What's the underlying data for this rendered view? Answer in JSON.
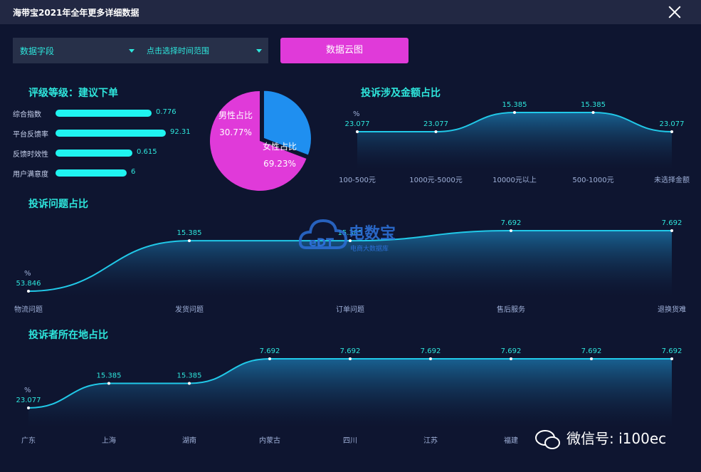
{
  "window": {
    "title": "海带宝2021年全年更多详细数据"
  },
  "toolbar": {
    "field_select": "数据字段",
    "time_select": "点击选择时间范围",
    "cloud_button": "数据云图"
  },
  "rating": {
    "title": "评级等级：建议下单",
    "items": [
      {
        "label": "综合指数",
        "value": "0.776",
        "fill": 0.54
      },
      {
        "label": "平台反馈率",
        "value": "92.31",
        "fill": 0.62
      },
      {
        "label": "反馈时效性",
        "value": "0.615",
        "fill": 0.43
      },
      {
        "label": "用户满意度",
        "value": "6",
        "fill": 0.4
      }
    ]
  },
  "pie": {
    "male_label": "男性占比",
    "male_value": "30.77%",
    "female_label": "女性占比",
    "female_value": "69.23%"
  },
  "amount_chart": {
    "title": "投诉涉及金额占比",
    "unit": "%"
  },
  "issue_chart": {
    "title": "投诉问题占比",
    "unit": "%"
  },
  "location_chart": {
    "title": "投诉者所在地占比",
    "unit": "%"
  },
  "watermark": {
    "logo_text": "电数宝",
    "logo_sub": "电商大数据库",
    "wechat": "微信号: i100ec"
  },
  "colors": {
    "accent_cyan": "#2ee6dc",
    "bar_cyan": "#1ff3f0",
    "pink": "#e03ad9",
    "pie_blue": "#1f8ff0",
    "bg": "#0e1530"
  },
  "chart_data": [
    {
      "type": "pie",
      "categories": [
        "男性占比",
        "女性占比"
      ],
      "values": [
        30.77,
        69.23
      ]
    },
    {
      "type": "area",
      "title": "投诉涉及金额占比",
      "ylabel": "%",
      "categories": [
        "100-500元",
        "1000元-5000元",
        "10000元以上",
        "500-1000元",
        "未选择金额"
      ],
      "values": [
        23.077,
        23.077,
        15.385,
        15.385,
        23.077
      ]
    },
    {
      "type": "area",
      "title": "投诉问题占比",
      "ylabel": "%",
      "categories": [
        "物流问题",
        "发货问题",
        "订单问题",
        "售后服务",
        "退换货难"
      ],
      "values": [
        53.846,
        15.385,
        15.385,
        7.692,
        7.692
      ]
    },
    {
      "type": "area",
      "title": "投诉者所在地占比",
      "ylabel": "%",
      "categories": [
        "广东",
        "上海",
        "湖南",
        "内蒙古",
        "四川",
        "江苏",
        "福建",
        "",
        ""
      ],
      "values": [
        23.077,
        15.385,
        15.385,
        7.692,
        7.692,
        7.692,
        7.692,
        7.692,
        7.692
      ]
    }
  ]
}
